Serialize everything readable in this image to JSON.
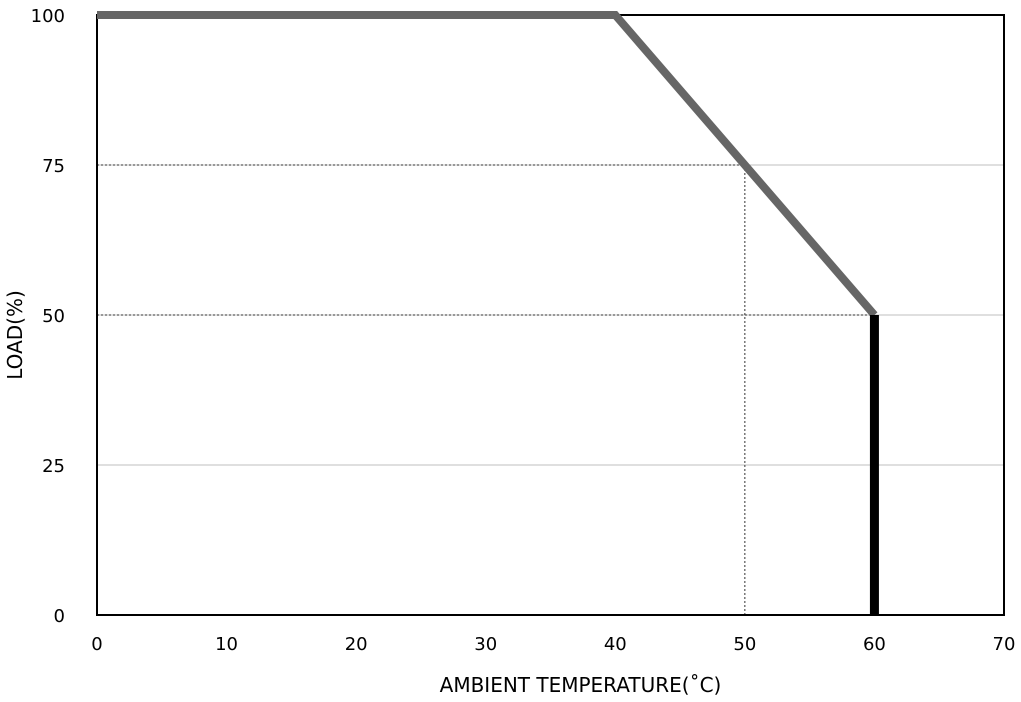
{
  "chart_data": {
    "type": "line",
    "title": "",
    "xlabel": "AMBIENT TEMPERATURE(˚C)",
    "ylabel": "LOAD(%)",
    "xlim": [
      0,
      70
    ],
    "ylim": [
      0,
      100
    ],
    "x_ticks": [
      "0",
      "10",
      "20",
      "30",
      "40",
      "50",
      "60",
      "70"
    ],
    "y_ticks": [
      "0",
      "25",
      "50",
      "75",
      "100"
    ],
    "grid": {
      "horizontal": true,
      "vertical": false
    },
    "series": [
      {
        "points": [
          {
            "x": 0,
            "y": 100
          },
          {
            "x": 40,
            "y": 100
          },
          {
            "x": 60,
            "y": 50
          }
        ]
      }
    ],
    "cutoff_line": {
      "x": 60,
      "y_from": 0,
      "y_to": 50
    },
    "reference_lines": [
      {
        "from_x": 0,
        "to_x": 50,
        "y": 75,
        "drop_to_axis": true
      },
      {
        "from_x": 0,
        "to_x": 60,
        "y": 50,
        "drop_to_axis": false
      }
    ],
    "colors": {
      "curve": "#666666",
      "cutoff": "#000000",
      "grid": "#bfbfbf",
      "reference": "#333333",
      "frame": "#000000"
    }
  }
}
